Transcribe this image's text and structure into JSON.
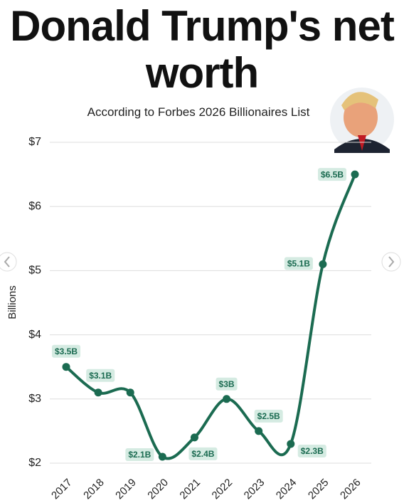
{
  "chart_data": {
    "type": "line",
    "title": "Donald Trump's net worth",
    "subtitle": "According to Forbes 2026 Billionaires List",
    "y_label": "Billions",
    "categories": [
      "2017",
      "2018",
      "2019",
      "2020",
      "2021",
      "2022",
      "2023",
      "2024",
      "2025",
      "2026"
    ],
    "series": [
      {
        "name": "Net worth",
        "color": "#1b6b51",
        "values": [
          3.5,
          3.1,
          3.1,
          2.1,
          2.4,
          3,
          2.5,
          2.3,
          5.1,
          6.5
        ],
        "value_labels": [
          "$3.5B",
          null,
          "$3.1B",
          "$2.1B",
          "$2.4B",
          "$3B",
          "$2.5B",
          "$2.3B",
          "$5.1B",
          "$6.5B"
        ]
      }
    ],
    "ylim": [
      2,
      7
    ],
    "yticks": [
      {
        "value": 2,
        "label": "$2"
      },
      {
        "value": 3,
        "label": "$3"
      },
      {
        "value": 4,
        "label": "$4"
      },
      {
        "value": 5,
        "label": "$5"
      },
      {
        "value": 6,
        "label": "$6"
      },
      {
        "value": 7,
        "label": "$7"
      }
    ],
    "grid": true
  }
}
